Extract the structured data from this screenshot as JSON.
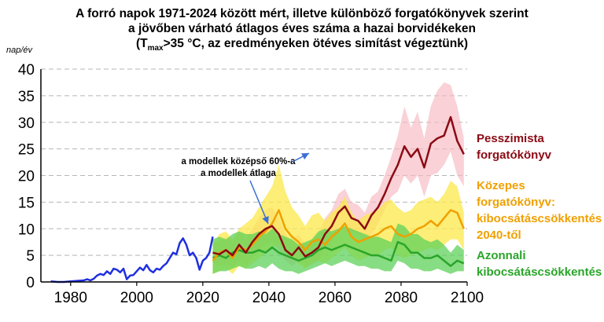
{
  "title_lines": [
    "A forró napok 1971-2024 között mért, illetve különböző forgatókönyvek szerint",
    "a jövőben várható átlagos éves száma a hazai borvidékeken",
    {
      "pre": "(T",
      "sub": "max",
      "post": ">35 °C, az eredményeken ötéves simítást végeztünk)"
    }
  ],
  "unit_label": "nap/év",
  "annotation": {
    "line1": "a modellek középső 60%-a",
    "line2": "a modellek átlaga"
  },
  "scenario_labels": {
    "pessimist": [
      "Pesszimista",
      "forgatókönyv"
    ],
    "medium": [
      "Közepes",
      "forgatókönyv:",
      "kibocsátáscsökkentés",
      "2040-től"
    ],
    "immediate": [
      "Azonnali",
      "kibocsátáscsökkentés"
    ]
  },
  "chart_data": {
    "type": "line",
    "title": "A forró napok 1971-2024 között mért, illetve különböző forgatókönyvek szerint a jövőben várható átlagos éves száma a hazai borvidékeken (Tmax>35 °C, az eredményeken ötéves simítást végeztünk)",
    "ylabel": "nap/év",
    "xlim": [
      1971,
      2100
    ],
    "ylim": [
      0,
      40
    ],
    "x_ticks": [
      1980,
      2000,
      2020,
      2040,
      2060,
      2080,
      2100
    ],
    "y_ticks": [
      0,
      5,
      10,
      15,
      20,
      25,
      30,
      35,
      40
    ],
    "grid": "horizontal dashed",
    "colors": {
      "observed": "#1f2fe0",
      "pessimist": "#8b0a14",
      "pessimist_band": "#f6b9c0",
      "medium": "#f0a000",
      "medium_band": "#fbe84a",
      "immediate": "#2aa52a",
      "immediate_band": "#5fd25a"
    },
    "series": [
      {
        "key": "observed",
        "x": [
          1974,
          1976,
          1978,
          1980,
          1982,
          1984,
          1985,
          1986,
          1987,
          1988,
          1989,
          1990,
          1991,
          1992,
          1993,
          1994,
          1995,
          1996,
          1997,
          1998,
          1999,
          2000,
          2001,
          2002,
          2003,
          2004,
          2005,
          2006,
          2007,
          2008,
          2009,
          2010,
          2011,
          2012,
          2013,
          2014,
          2015,
          2016,
          2017,
          2018,
          2019,
          2020,
          2021,
          2022,
          2023
        ],
        "values": [
          0.1,
          0,
          0,
          0.1,
          0.2,
          0.3,
          0.5,
          0.3,
          0.6,
          1.2,
          1.5,
          1.3,
          2.0,
          1.5,
          2.5,
          2.3,
          1.8,
          2.5,
          0.5,
          1.2,
          1.3,
          2.0,
          2.7,
          2.2,
          3.2,
          2.2,
          1.8,
          2.5,
          2.3,
          3.0,
          3.5,
          4.5,
          5.5,
          5.2,
          7.3,
          8.2,
          7.0,
          5.0,
          5.5,
          4.5,
          2.3,
          4.0,
          4.5,
          5.5,
          8.5
        ]
      },
      {
        "key": "pessimist",
        "name": "Pesszimista forgatókönyv",
        "x": [
          2023,
          2025,
          2027,
          2029,
          2031,
          2033,
          2035,
          2037,
          2039,
          2041,
          2043,
          2045,
          2047,
          2049,
          2051,
          2053,
          2055,
          2057,
          2059,
          2061,
          2063,
          2065,
          2067,
          2069,
          2071,
          2073,
          2075,
          2077,
          2079,
          2081,
          2083,
          2085,
          2087,
          2089,
          2091,
          2093,
          2095,
          2097,
          2099
        ],
        "values": [
          5.5,
          5.2,
          6.0,
          5.0,
          7.0,
          5.5,
          7.5,
          9.0,
          10.0,
          10.5,
          9.0,
          6.0,
          5.0,
          6.5,
          4.8,
          5.5,
          6.5,
          9.0,
          10.5,
          13.0,
          14.2,
          12.0,
          11.5,
          10.0,
          12.5,
          14.0,
          16.5,
          19.5,
          22.0,
          25.5,
          23.5,
          25.0,
          21.5,
          26.0,
          27.0,
          27.5,
          31.0,
          26.5,
          24.0
        ],
        "band_low": [
          3.5,
          3.0,
          3.2,
          2.8,
          4.0,
          3.0,
          4.5,
          6.0,
          7.0,
          7.5,
          6.0,
          4.0,
          3.0,
          4.0,
          2.8,
          3.2,
          4.0,
          6.0,
          7.5,
          9.5,
          11.0,
          9.5,
          9.0,
          7.5,
          9.0,
          11.0,
          13.5,
          16.0,
          17.0,
          20.0,
          18.5,
          20.0,
          16.0,
          20.0,
          20.5,
          22.0,
          24.5,
          20.0,
          18.0
        ],
        "band_high": [
          7.5,
          7.5,
          8.5,
          7.5,
          9.5,
          8.0,
          10.0,
          12.0,
          13.5,
          14.0,
          12.0,
          9.0,
          7.5,
          9.0,
          7.0,
          8.0,
          9.0,
          12.0,
          13.5,
          16.5,
          17.5,
          15.0,
          14.5,
          13.0,
          16.0,
          17.0,
          20.0,
          23.5,
          27.5,
          33.0,
          29.0,
          32.0,
          27.0,
          33.0,
          36.0,
          37.5,
          37.0,
          33.0,
          27.0
        ]
      },
      {
        "key": "medium",
        "name": "Közepes forgatókönyv: kibocsátáscsökkentés 2040-től",
        "x": [
          2023,
          2025,
          2027,
          2029,
          2031,
          2033,
          2035,
          2037,
          2039,
          2041,
          2043,
          2045,
          2047,
          2049,
          2051,
          2053,
          2055,
          2057,
          2059,
          2061,
          2063,
          2065,
          2067,
          2069,
          2071,
          2073,
          2075,
          2077,
          2079,
          2081,
          2083,
          2085,
          2087,
          2089,
          2091,
          2093,
          2095,
          2097,
          2099
        ],
        "values": [
          4.0,
          5.5,
          6.0,
          4.5,
          6.5,
          6.0,
          7.0,
          8.5,
          9.5,
          11.0,
          13.5,
          10.0,
          8.5,
          7.5,
          6.0,
          7.5,
          8.0,
          7.0,
          8.5,
          9.5,
          11.0,
          8.5,
          7.5,
          8.0,
          8.5,
          9.0,
          10.0,
          10.5,
          9.0,
          8.5,
          9.0,
          10.0,
          10.5,
          11.5,
          10.5,
          12.0,
          13.5,
          13.0,
          10.0
        ],
        "band_low": [
          1.5,
          2.0,
          2.5,
          1.5,
          3.0,
          2.5,
          3.5,
          4.5,
          5.5,
          6.5,
          7.0,
          5.5,
          4.5,
          3.5,
          2.5,
          3.5,
          4.0,
          3.5,
          4.5,
          5.5,
          6.5,
          5.0,
          4.0,
          4.5,
          5.0,
          5.0,
          6.0,
          6.5,
          5.0,
          4.5,
          5.0,
          5.5,
          6.0,
          6.5,
          6.0,
          7.0,
          8.0,
          8.0,
          6.0
        ],
        "band_high": [
          7.0,
          9.0,
          9.5,
          8.0,
          10.0,
          11.0,
          12.0,
          14.0,
          16.0,
          18.0,
          22.0,
          17.0,
          14.0,
          12.5,
          10.5,
          12.5,
          13.0,
          11.5,
          13.0,
          14.0,
          16.0,
          13.0,
          11.5,
          12.5,
          13.0,
          13.5,
          15.0,
          15.5,
          14.0,
          13.0,
          13.5,
          15.0,
          15.5,
          16.0,
          15.0,
          16.5,
          19.0,
          18.0,
          13.0
        ]
      },
      {
        "key": "immediate",
        "name": "Azonnali kibocsátáscsökkentés",
        "x": [
          2023,
          2025,
          2027,
          2029,
          2031,
          2033,
          2035,
          2037,
          2039,
          2041,
          2043,
          2045,
          2047,
          2049,
          2051,
          2053,
          2055,
          2057,
          2059,
          2061,
          2063,
          2065,
          2067,
          2069,
          2071,
          2073,
          2075,
          2077,
          2079,
          2081,
          2083,
          2085,
          2087,
          2089,
          2091,
          2093,
          2095,
          2097,
          2099
        ],
        "values": [
          4.5,
          5.0,
          4.5,
          5.5,
          6.0,
          5.5,
          5.5,
          6.0,
          5.5,
          6.5,
          5.5,
          5.0,
          4.5,
          4.0,
          4.5,
          5.0,
          6.0,
          6.5,
          6.0,
          6.5,
          7.0,
          6.5,
          6.0,
          5.5,
          5.0,
          5.0,
          4.5,
          4.0,
          7.5,
          7.0,
          5.5,
          5.5,
          4.5,
          4.5,
          5.0,
          4.0,
          3.0,
          4.0,
          3.5
        ],
        "band_low": [
          1.5,
          2.0,
          2.0,
          2.5,
          3.0,
          2.5,
          2.5,
          3.0,
          2.5,
          3.5,
          2.5,
          2.0,
          2.0,
          1.5,
          2.0,
          2.5,
          3.0,
          3.5,
          3.0,
          3.5,
          4.0,
          3.5,
          3.0,
          3.0,
          2.5,
          2.5,
          2.0,
          2.0,
          4.0,
          3.5,
          2.5,
          2.5,
          2.0,
          2.0,
          2.5,
          2.0,
          1.5,
          2.0,
          2.0
        ],
        "band_high": [
          8.0,
          8.5,
          8.0,
          9.0,
          9.5,
          9.0,
          9.0,
          9.5,
          9.0,
          10.0,
          9.0,
          8.5,
          8.0,
          7.0,
          7.5,
          8.0,
          9.5,
          10.0,
          9.5,
          10.0,
          10.5,
          10.0,
          9.5,
          9.0,
          8.5,
          8.5,
          8.0,
          7.5,
          11.0,
          10.5,
          9.0,
          9.0,
          8.0,
          7.5,
          8.0,
          7.0,
          5.5,
          7.0,
          6.0
        ]
      }
    ]
  }
}
